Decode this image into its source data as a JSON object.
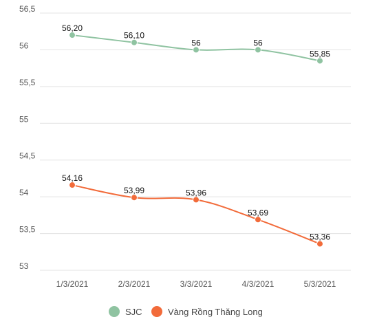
{
  "chart_data": {
    "type": "line",
    "categories": [
      "1/3/2021",
      "2/3/2021",
      "3/3/2021",
      "4/3/2021",
      "5/3/2021"
    ],
    "ylim": [
      53,
      56.5
    ],
    "yticks": [
      53,
      53.5,
      54,
      54.5,
      55,
      55.5,
      56,
      56.5
    ],
    "ytick_labels": [
      "53",
      "53,5",
      "54",
      "54,5",
      "55",
      "55,5",
      "56",
      "56,5"
    ],
    "grid": true,
    "legend_position": "bottom",
    "series": [
      {
        "name": "SJC",
        "color": "#8fc3a1",
        "values": [
          56.2,
          56.1,
          56.0,
          56.0,
          55.85
        ],
        "labels": [
          "56,20",
          "56,10",
          "56",
          "56",
          "55,85"
        ]
      },
      {
        "name": "Vàng Rồng Thăng Long",
        "color": "#f26b3a",
        "values": [
          54.16,
          53.99,
          53.96,
          53.69,
          53.36
        ],
        "labels": [
          "54,16",
          "53,99",
          "53,96",
          "53,69",
          "53,36"
        ]
      }
    ]
  }
}
